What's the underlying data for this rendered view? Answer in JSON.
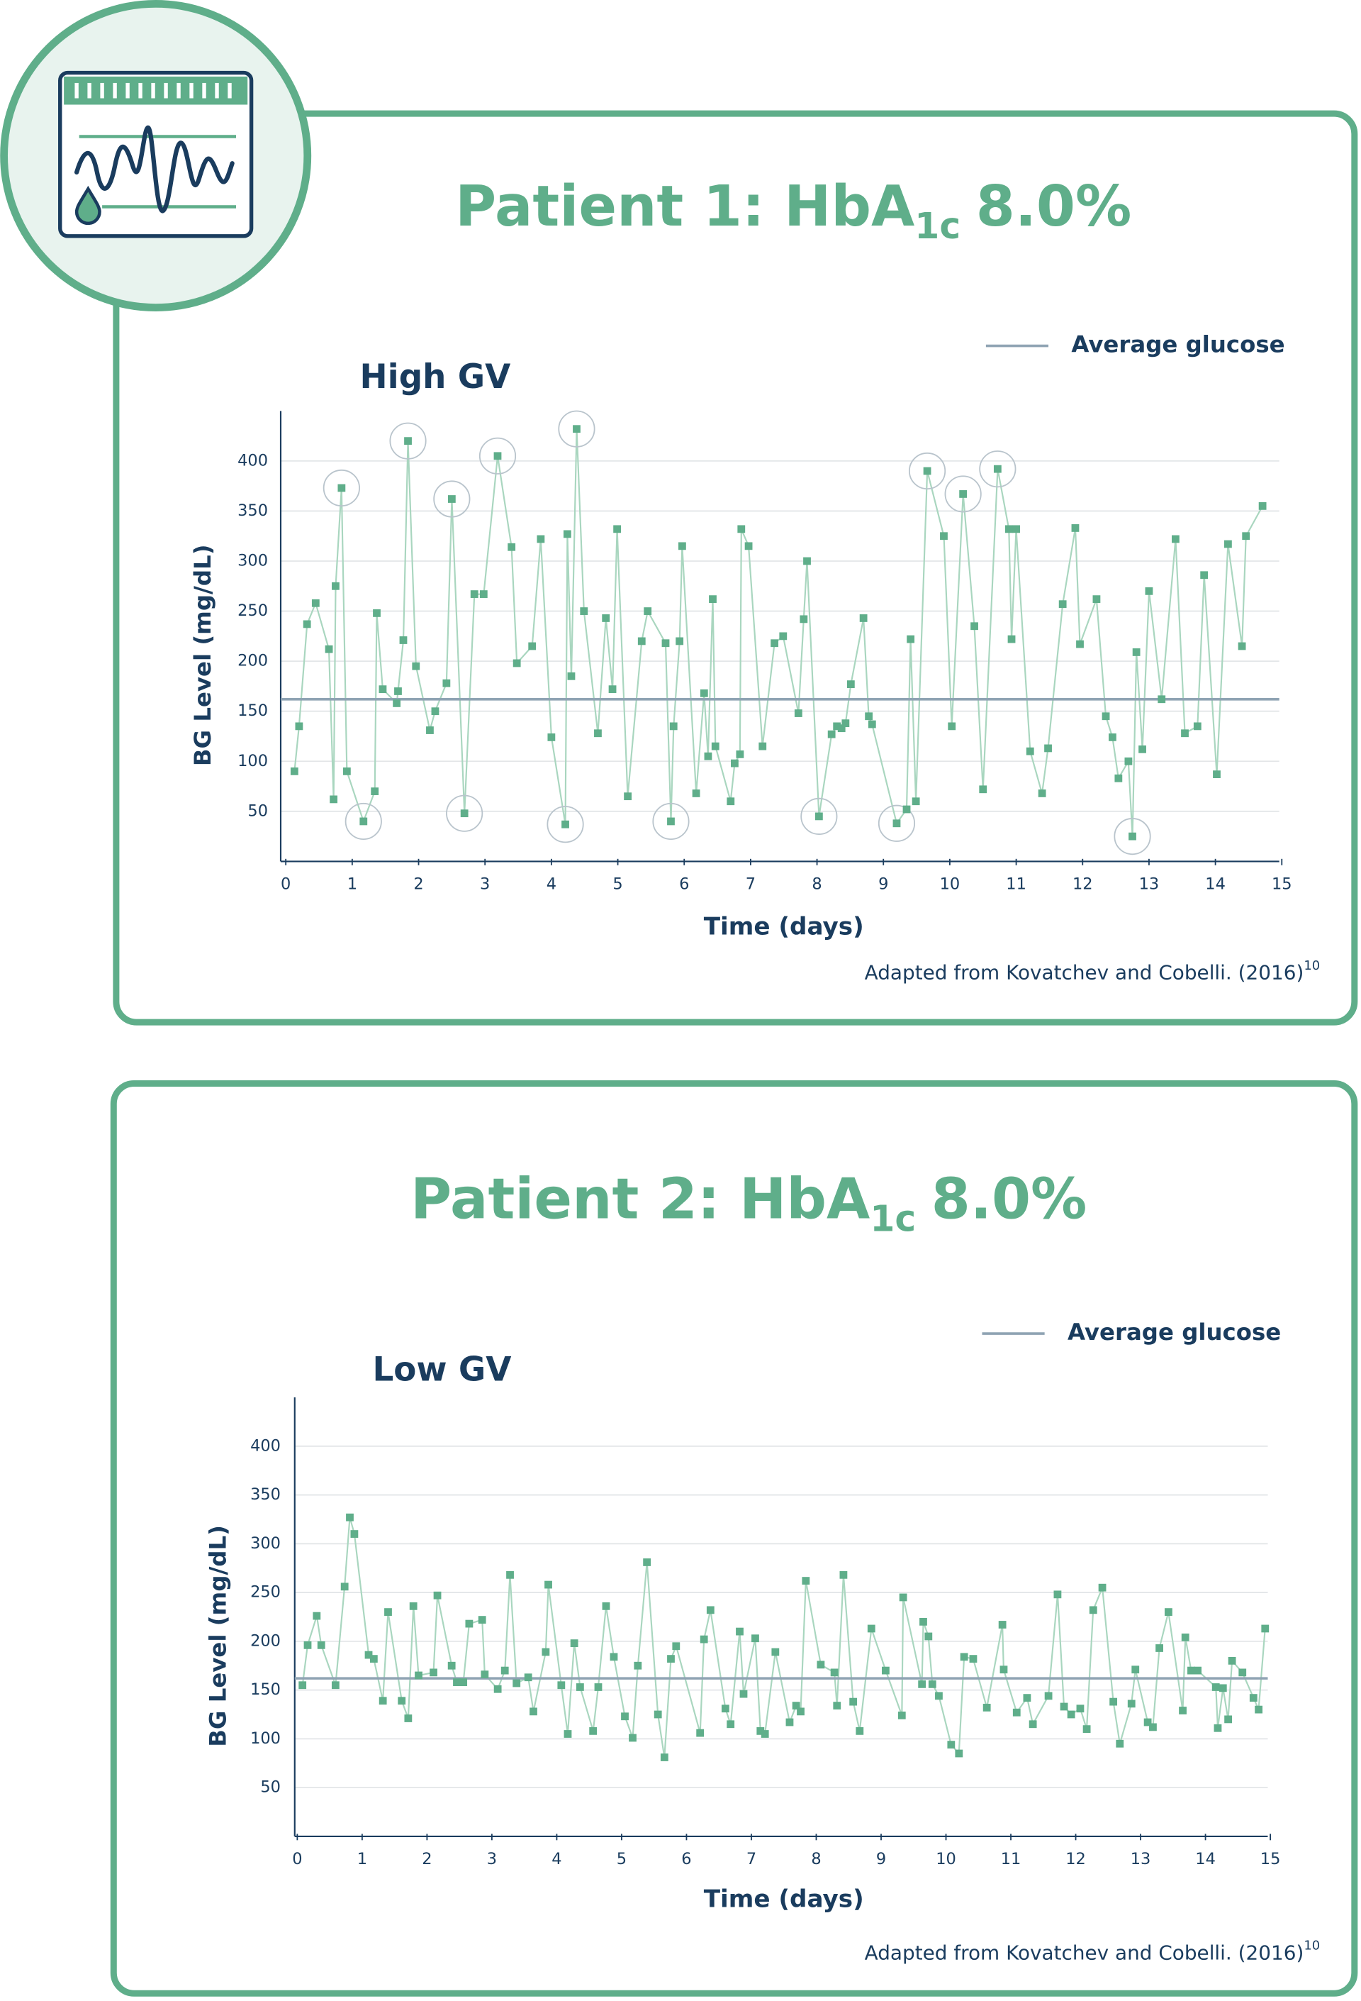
{
  "chart_data": [
    {
      "type": "line",
      "title": {
        "text": "Patient 1: HbA",
        "subscript": "1c",
        "suffix": "8.0%"
      },
      "subtitle": "High GV",
      "legend": "Average glucose",
      "average": 162,
      "x_label": "Time (days)",
      "y_label": "BG Level (mg/dL)",
      "source": {
        "text": "Adapted from Kovatchev and Cobelli. (2016)",
        "superscript": "10"
      },
      "x": [
        0.13,
        0.2,
        0.32,
        0.45,
        0.65,
        0.72,
        0.75,
        0.84,
        0.92,
        1.17,
        1.34,
        1.37,
        1.46,
        1.67,
        1.69,
        1.77,
        1.84,
        1.96,
        2.17,
        2.25,
        2.42,
        2.5,
        2.69,
        2.84,
        2.98,
        3.19,
        3.4,
        3.48,
        3.71,
        3.84,
        4.0,
        4.21,
        4.24,
        4.3,
        4.38,
        4.49,
        4.7,
        4.82,
        4.92,
        4.99,
        5.15,
        5.36,
        5.45,
        5.72,
        5.8,
        5.84,
        5.93,
        5.97,
        6.18,
        6.3,
        6.36,
        6.43,
        6.47,
        6.7,
        6.76,
        6.84,
        6.86,
        6.97,
        7.18,
        7.36,
        7.49,
        7.72,
        7.8,
        7.85,
        8.03,
        8.22,
        8.3,
        8.37,
        8.43,
        8.51,
        8.7,
        8.78,
        8.83,
        9.2,
        9.35,
        9.41,
        9.49,
        9.66,
        9.91,
        10.03,
        10.2,
        10.37,
        10.5,
        10.72,
        10.89,
        10.93,
        11.0,
        11.21,
        11.39,
        11.48,
        11.7,
        11.89,
        11.96,
        12.21,
        12.35,
        12.45,
        12.54,
        12.69,
        12.75,
        12.81,
        12.9,
        13.0,
        13.19,
        13.4,
        13.54,
        13.73,
        13.83,
        14.02,
        14.19,
        14.4,
        14.46,
        14.71
      ],
      "values": [
        90,
        135,
        237,
        258,
        212,
        62,
        275,
        373,
        90,
        40,
        70,
        248,
        172,
        158,
        170,
        221,
        420,
        195,
        131,
        150,
        178,
        362,
        48,
        267,
        267,
        405,
        314,
        198,
        215,
        322,
        124,
        37,
        327,
        185,
        432,
        250,
        128,
        243,
        172,
        332,
        65,
        220,
        250,
        218,
        40,
        135,
        220,
        315,
        68,
        168,
        105,
        262,
        115,
        60,
        98,
        107,
        332,
        315,
        115,
        218,
        225,
        148,
        242,
        300,
        45,
        127,
        135,
        133,
        138,
        177,
        243,
        145,
        137,
        38,
        52,
        222,
        60,
        390,
        325,
        135,
        367,
        235,
        72,
        392,
        332,
        222,
        332,
        110,
        68,
        113,
        257,
        333,
        217,
        262,
        145,
        124,
        83,
        100,
        25,
        209,
        112,
        270,
        162,
        322,
        128,
        135,
        286,
        87,
        317,
        215,
        325,
        355
      ],
      "circled": [
        7,
        9,
        16,
        21,
        22,
        25,
        31,
        34,
        44,
        64,
        73,
        77,
        80,
        83,
        98
      ],
      "xlim": [
        0,
        15
      ],
      "ylim": [
        0,
        450
      ],
      "xticks": [
        0,
        1,
        2,
        3,
        4,
        5,
        6,
        7,
        8,
        9,
        10,
        11,
        12,
        13,
        14,
        15
      ],
      "yticks": [
        50,
        100,
        150,
        200,
        250,
        300,
        350,
        400
      ],
      "grid": true,
      "color": "#5fae8a",
      "line_color": "#a9d6bf",
      "average_color": "#8fa3b3"
    },
    {
      "type": "line",
      "title": {
        "text": "Patient 2: HbA",
        "subscript": "1c",
        "suffix": "8.0%"
      },
      "subtitle": "Low GV",
      "legend": "Average glucose",
      "average": 162,
      "x_label": "Time (days)",
      "y_label": "BG Level (mg/dL)",
      "source": {
        "text": "Adapted from Kovatchev and Cobelli. (2016)",
        "superscript": "10"
      },
      "x": [
        0.08,
        0.16,
        0.3,
        0.37,
        0.59,
        0.73,
        0.81,
        0.88,
        1.1,
        1.18,
        1.32,
        1.4,
        1.61,
        1.71,
        1.79,
        1.87,
        2.1,
        2.16,
        2.38,
        2.46,
        2.56,
        2.65,
        2.85,
        2.89,
        3.09,
        3.2,
        3.28,
        3.38,
        3.56,
        3.64,
        3.83,
        3.87,
        4.07,
        4.17,
        4.27,
        4.36,
        4.56,
        4.64,
        4.76,
        4.88,
        5.05,
        5.17,
        5.25,
        5.39,
        5.56,
        5.66,
        5.76,
        5.84,
        6.21,
        6.27,
        6.37,
        6.6,
        6.68,
        6.82,
        6.88,
        7.06,
        7.14,
        7.21,
        7.37,
        7.59,
        7.69,
        7.76,
        7.84,
        8.07,
        8.28,
        8.32,
        8.42,
        8.57,
        8.67,
        8.85,
        9.07,
        9.32,
        9.34,
        9.63,
        9.65,
        9.73,
        9.79,
        9.89,
        10.08,
        10.2,
        10.28,
        10.42,
        10.63,
        10.87,
        10.89,
        11.09,
        11.25,
        11.34,
        11.58,
        11.72,
        11.82,
        11.93,
        12.07,
        12.17,
        12.27,
        12.41,
        12.58,
        12.68,
        12.86,
        12.92,
        13.11,
        13.19,
        13.29,
        13.43,
        13.65,
        13.69,
        13.78,
        13.88,
        14.16,
        14.19,
        14.27,
        14.35,
        14.41,
        14.57,
        14.74,
        14.82,
        14.92
      ],
      "values": [
        155,
        196,
        226,
        196,
        155,
        256,
        327,
        310,
        186,
        182,
        139,
        230,
        139,
        121,
        236,
        165,
        168,
        247,
        175,
        158,
        158,
        218,
        222,
        166,
        151,
        170,
        268,
        157,
        163,
        128,
        189,
        258,
        155,
        105,
        198,
        153,
        108,
        153,
        236,
        184,
        123,
        101,
        175,
        281,
        125,
        81,
        182,
        195,
        106,
        202,
        232,
        131,
        115,
        210,
        146,
        203,
        108,
        105,
        189,
        117,
        134,
        128,
        262,
        176,
        168,
        134,
        268,
        138,
        108,
        213,
        170,
        124,
        245,
        156,
        220,
        205,
        156,
        144,
        94,
        85,
        184,
        182,
        132,
        217,
        171,
        127,
        142,
        115,
        144,
        248,
        133,
        125,
        131,
        110,
        232,
        255,
        138,
        95,
        136,
        171,
        117,
        112,
        193,
        230,
        129,
        204,
        170,
        170,
        153,
        111,
        152,
        120,
        180,
        168,
        142,
        130,
        213
      ],
      "xlim": [
        0,
        15
      ],
      "ylim": [
        0,
        450
      ],
      "xticks": [
        0,
        1,
        2,
        3,
        4,
        5,
        6,
        7,
        8,
        9,
        10,
        11,
        12,
        13,
        14,
        15
      ],
      "yticks": [
        50,
        100,
        150,
        200,
        250,
        300,
        350,
        400
      ],
      "grid": true,
      "color": "#5fae8a",
      "line_color": "#a9d6bf",
      "average_color": "#8fa3b3"
    }
  ]
}
